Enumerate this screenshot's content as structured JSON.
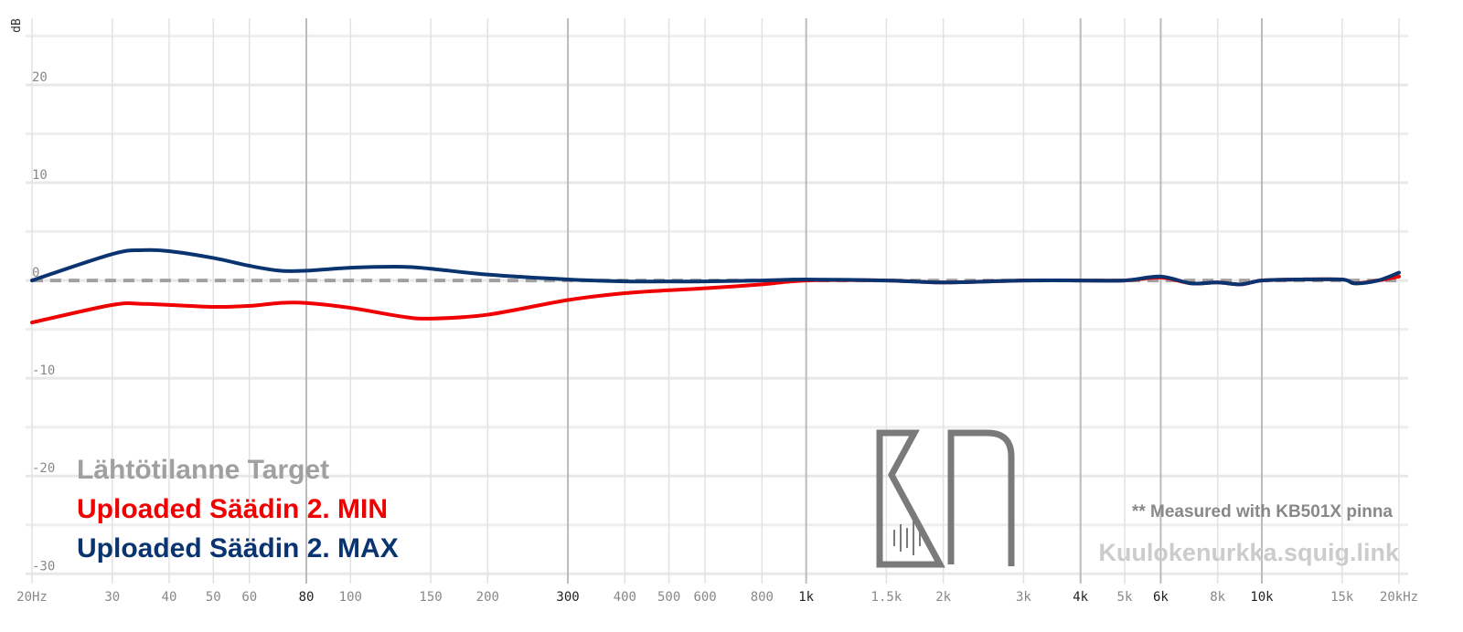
{
  "chart_data": {
    "type": "line",
    "y_label": "dB",
    "log_x": true,
    "grid": true,
    "xlim": [
      20,
      20000
    ],
    "ylim": [
      -31,
      27
    ],
    "xticks": [
      {
        "value": 20,
        "label": "20Hz"
      },
      30,
      40,
      50,
      60,
      80,
      100,
      150,
      200,
      300,
      400,
      500,
      600,
      800,
      {
        "value": 1000,
        "label": "1k"
      },
      {
        "value": 1500,
        "label": "1.5k"
      },
      {
        "value": 2000,
        "label": "2k"
      },
      {
        "value": 3000,
        "label": "3k"
      },
      {
        "value": 4000,
        "label": "4k"
      },
      {
        "value": 5000,
        "label": "5k"
      },
      {
        "value": 6000,
        "label": "6k"
      },
      {
        "value": 8000,
        "label": "8k"
      },
      {
        "value": 10000,
        "label": "10k"
      },
      {
        "value": 15000,
        "label": "15k"
      },
      {
        "value": 20000,
        "label": "20kHz"
      }
    ],
    "major_xticks": [
      80,
      300,
      1000,
      4000,
      6000,
      10000
    ],
    "yticks": [
      -30,
      -20,
      -10,
      0,
      10,
      20
    ],
    "y_minor_ticks": [
      -25,
      -15,
      -5,
      5,
      15,
      25
    ],
    "legend_position": "lower left",
    "series": [
      {
        "name": "Lähtötilanne Target",
        "color": "#a0a0a0",
        "dashed": true,
        "x": [
          20,
          20000
        ],
        "values": [
          0,
          0
        ]
      },
      {
        "name": "Uploaded Säädin 2. MIN",
        "color": "#f00000",
        "x": [
          20,
          30,
          35,
          40,
          50,
          60,
          70,
          80,
          100,
          130,
          150,
          200,
          300,
          400,
          500,
          600,
          800,
          1000,
          1500,
          2000,
          3000,
          4000,
          5000,
          6000,
          7000,
          8000,
          9000,
          10000,
          12000,
          15000,
          16000,
          18000,
          20000
        ],
        "values": [
          -4.3,
          -2.5,
          -2.4,
          -2.5,
          -2.7,
          -2.6,
          -2.3,
          -2.3,
          -2.8,
          -3.7,
          -3.9,
          -3.5,
          -2.0,
          -1.3,
          -1.0,
          -0.8,
          -0.4,
          0,
          0,
          -0.2,
          0,
          0,
          0,
          0.3,
          -0.3,
          -0.2,
          -0.4,
          0,
          0.1,
          0.1,
          -0.3,
          0,
          0.4
        ]
      },
      {
        "name": "Uploaded Säädin 2. MAX",
        "color": "#0a3470",
        "x": [
          20,
          30,
          35,
          40,
          50,
          60,
          70,
          80,
          100,
          130,
          150,
          200,
          300,
          400,
          500,
          600,
          800,
          1000,
          1500,
          2000,
          3000,
          4000,
          5000,
          6000,
          7000,
          8000,
          9000,
          10000,
          12000,
          15000,
          16000,
          18000,
          20000
        ],
        "values": [
          0,
          2.7,
          3.1,
          3.0,
          2.3,
          1.5,
          1.0,
          1.0,
          1.3,
          1.4,
          1.2,
          0.6,
          0.1,
          -0.1,
          -0.1,
          -0.1,
          0,
          0.1,
          0,
          -0.2,
          0,
          0,
          0,
          0.4,
          -0.3,
          -0.2,
          -0.4,
          0,
          0.1,
          0.1,
          -0.3,
          0,
          0.8
        ]
      }
    ],
    "annotation": "** Measured with KB501X pinna",
    "watermark": "Kuulokenurkka.squig.link"
  }
}
